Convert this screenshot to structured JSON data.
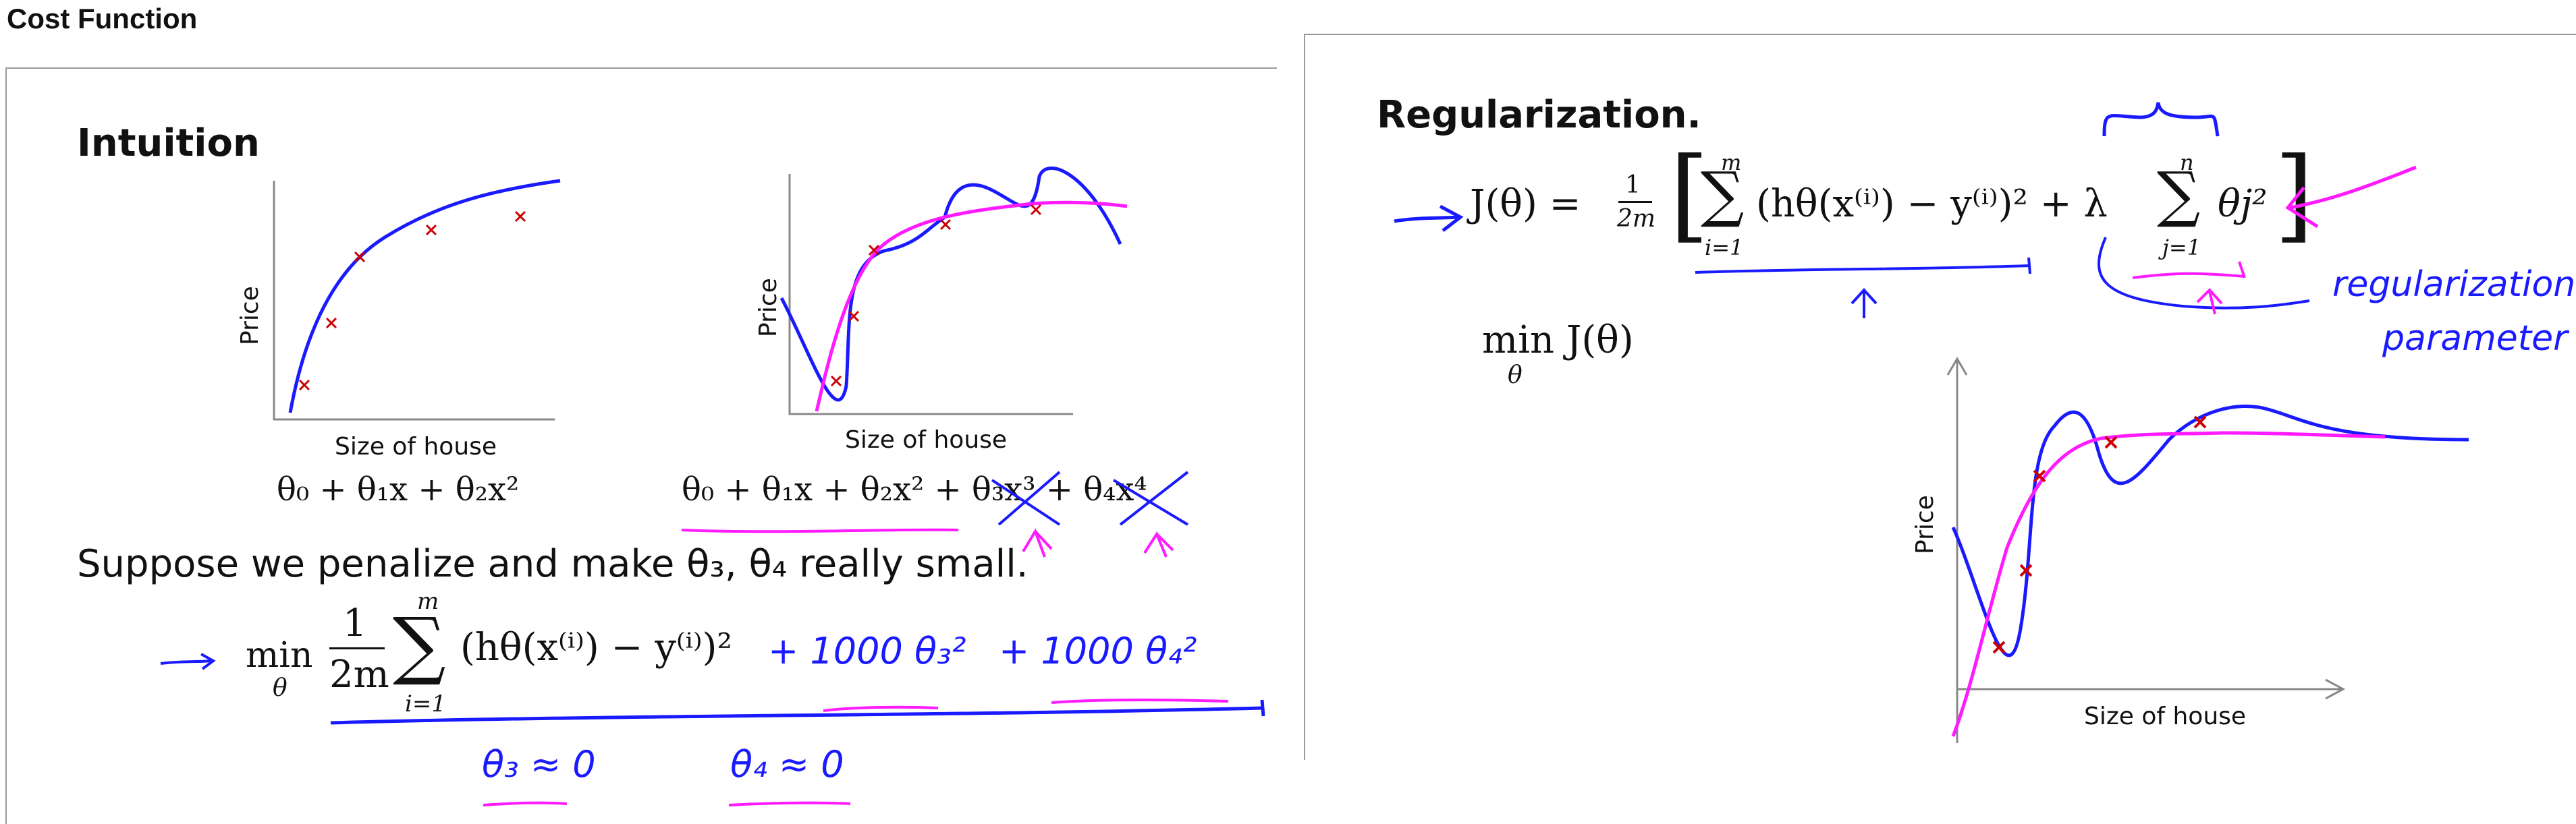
{
  "window": {
    "title": "Cost Function"
  },
  "left_slide": {
    "heading": "Intuition",
    "plot1": {
      "ylabel": "Price",
      "xlabel": "Size of house"
    },
    "plot2": {
      "ylabel": "Price",
      "xlabel": "Size of house"
    },
    "formula1": "θ₀ + θ₁x + θ₂x²",
    "formula2": "θ₀ + θ₁x + θ₂x² + θ₃x³ + θ₄x⁴",
    "suppose_text": "Suppose we penalize and make θ₃, θ₄ really small.",
    "objective": {
      "min": "min",
      "sub": "θ",
      "frac_num": "1",
      "frac_den": "2m",
      "sum_top": "m",
      "sum_bottom": "i=1",
      "body": "(hθ(x⁽ⁱ⁾) − y⁽ⁱ⁾)²"
    },
    "handwritten": {
      "penalty1": "+ 1000 θ₃²",
      "penalty2": "+ 1000 θ₄²",
      "approx1": "θ₃ ≈ 0",
      "approx2": "θ₄ ≈ 0"
    }
  },
  "right_slide": {
    "heading": "Regularization.",
    "cost": {
      "lhs": "J(θ) =",
      "frac_num": "1",
      "frac_den": "2m",
      "sum1_top": "m",
      "sum1_bottom": "i=1",
      "body": "(hθ(x⁽ⁱ⁾) − y⁽ⁱ⁾)² + λ",
      "sum2_top": "n",
      "sum2_bottom": "j=1",
      "reg_term": "θj²"
    },
    "min_label": "min J(θ)",
    "min_sub": "θ",
    "handwritten": {
      "note1": "regularization",
      "note2": "parameter"
    },
    "plot": {
      "ylabel": "Price",
      "xlabel": "Size of house"
    }
  },
  "colors": {
    "ink_blue": "#1a1aff",
    "ink_magenta": "#ff1aff",
    "marker_red": "#cc0000",
    "axis_gray": "#888888"
  }
}
